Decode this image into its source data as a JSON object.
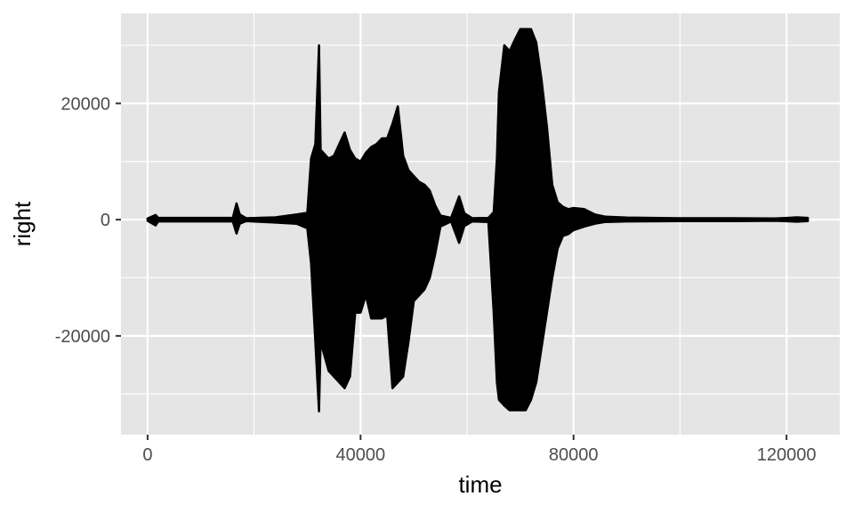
{
  "chart_data": {
    "type": "line",
    "title": "",
    "xlabel": "time",
    "ylabel": "right",
    "xlim": [
      -5000,
      130000
    ],
    "ylim": [
      -37000,
      35500
    ],
    "x_ticks": [
      0,
      40000,
      80000,
      120000
    ],
    "x_tick_labels": [
      "0",
      "40000",
      "80000",
      "120000"
    ],
    "y_ticks": [
      -20000,
      0,
      20000
    ],
    "y_tick_labels": [
      "-20000",
      "0",
      "20000"
    ],
    "grid": true,
    "legend": "none",
    "line_color": "#000000",
    "panel_color": "#e5e5e5",
    "series": [
      {
        "x": [
          0,
          1500,
          2000,
          16000,
          16700,
          17300,
          18500,
          24000,
          28000,
          30000,
          30700,
          31500,
          32200,
          32500,
          34000,
          35000,
          36000,
          37000,
          38000,
          39000,
          40000,
          41000,
          42000,
          43000,
          44000,
          45000,
          46000,
          47000,
          48000,
          49000,
          50000,
          51000,
          52000,
          53000,
          54000,
          55000,
          57000,
          58500,
          59500,
          61000,
          64000,
          65000,
          65600,
          66000,
          67000,
          68000,
          69000,
          70000,
          71000,
          72000,
          73000,
          74000,
          75000,
          76000,
          77000,
          78000,
          79000,
          80000,
          82000,
          84000,
          86000,
          90000,
          100000,
          110000,
          118000,
          122000,
          124000
        ],
        "upper": [
          200,
          800,
          300,
          300,
          2800,
          900,
          250,
          400,
          900,
          1200,
          10500,
          13000,
          30000,
          12000,
          10500,
          11000,
          13000,
          15000,
          12000,
          10500,
          10000,
          11500,
          12500,
          13000,
          14000,
          14000,
          16500,
          19500,
          11000,
          8500,
          7500,
          6500,
          6000,
          5000,
          2500,
          700,
          300,
          4000,
          1100,
          250,
          300,
          1300,
          10500,
          22000,
          30000,
          29000,
          31000,
          32800,
          32800,
          32800,
          30500,
          24000,
          16000,
          6000,
          3000,
          2200,
          1800,
          2000,
          1800,
          900,
          500,
          350,
          250,
          250,
          200,
          400,
          300
        ],
        "lower": [
          -200,
          -1000,
          -300,
          -300,
          -2400,
          -700,
          -250,
          -500,
          -700,
          -1500,
          -7500,
          -21000,
          -33000,
          -21000,
          -26000,
          -27000,
          -28000,
          -29000,
          -27000,
          -16000,
          -16000,
          -13000,
          -17000,
          -17000,
          -17000,
          -16500,
          -29000,
          -28000,
          -27000,
          -21000,
          -14000,
          -13000,
          -12000,
          -10000,
          -6000,
          -1200,
          -300,
          -4000,
          -1100,
          -300,
          -400,
          -16000,
          -28000,
          -31000,
          -32000,
          -32800,
          -32800,
          -32800,
          -32800,
          -31000,
          -28000,
          -22000,
          -16000,
          -10000,
          -5000,
          -2800,
          -2500,
          -1800,
          -1200,
          -700,
          -400,
          -300,
          -250,
          -250,
          -200,
          -350,
          -250
        ]
      }
    ]
  }
}
